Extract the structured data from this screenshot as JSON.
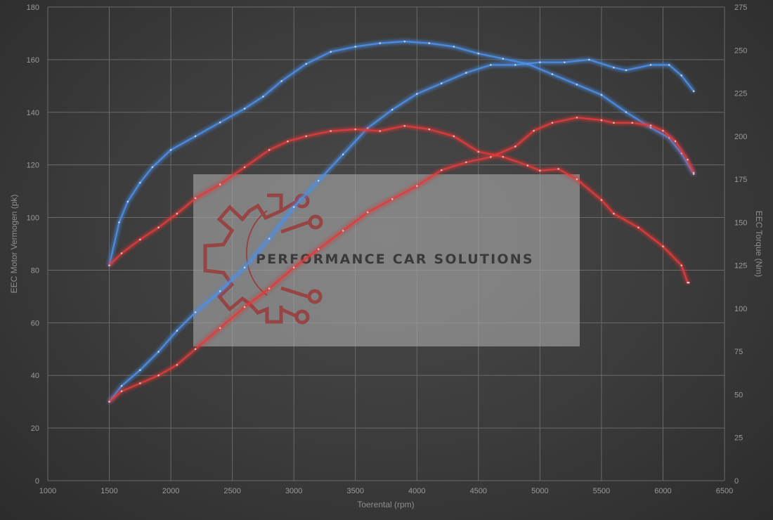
{
  "chart_data": {
    "type": "line",
    "xlabel": "Toerental (rpm)",
    "ylabel": "EEC Motor Vermogen (pk)",
    "y2label": "EEC Torque (Nm)",
    "xlim": [
      1000,
      6500
    ],
    "ylim": [
      0,
      180
    ],
    "y2lim": [
      0,
      275
    ],
    "xticks": [
      1000,
      1500,
      2000,
      2500,
      3000,
      3500,
      4000,
      4500,
      5000,
      5500,
      6000,
      6500
    ],
    "yticks": [
      0,
      20,
      40,
      60,
      80,
      100,
      120,
      140,
      160,
      180
    ],
    "y2ticks": [
      0,
      25,
      50,
      75,
      100,
      125,
      150,
      175,
      200,
      225,
      250,
      275
    ],
    "grid": true,
    "colors": {
      "tuned": "#4d8fe6",
      "stock": "#e03a3a"
    },
    "series": [
      {
        "kind": "torque",
        "variant": "tuned",
        "axis": "right",
        "color": "#4d8fe6",
        "x": [
          1500,
          1580,
          1650,
          1750,
          1850,
          2000,
          2200,
          2400,
          2600,
          2750,
          2900,
          3100,
          3300,
          3500,
          3700,
          3900,
          4100,
          4300,
          4500,
          4700,
          4900,
          5100,
          5300,
          5500,
          5700,
          5900,
          6050,
          6150,
          6250
        ],
        "y": [
          125,
          150,
          162,
          173,
          182,
          192,
          200,
          208,
          216,
          223,
          232,
          242,
          249,
          252,
          254,
          255,
          254,
          252,
          248,
          245,
          242,
          236,
          230,
          224,
          214,
          205,
          199,
          190,
          178
        ]
      },
      {
        "kind": "power",
        "variant": "tuned",
        "axis": "left",
        "color": "#4d8fe6",
        "x": [
          1500,
          1600,
          1750,
          1900,
          2050,
          2200,
          2400,
          2600,
          2800,
          3000,
          3200,
          3400,
          3600,
          3800,
          4000,
          4200,
          4400,
          4600,
          4800,
          5000,
          5200,
          5400,
          5600,
          5700,
          5900,
          6050,
          6150,
          6250
        ],
        "y": [
          30,
          36,
          42,
          49,
          57,
          64,
          72,
          81,
          92,
          104,
          114,
          124,
          134,
          141,
          147,
          151,
          155,
          158,
          158,
          159,
          159,
          160,
          157,
          156,
          158,
          158,
          154,
          148
        ]
      },
      {
        "kind": "torque",
        "variant": "stock",
        "axis": "right",
        "color": "#e03a3a",
        "x": [
          1500,
          1600,
          1750,
          1900,
          2050,
          2200,
          2400,
          2600,
          2800,
          2950,
          3100,
          3300,
          3500,
          3700,
          3900,
          4100,
          4300,
          4500,
          4700,
          4900,
          5000,
          5150,
          5300,
          5500,
          5600,
          5800,
          6000,
          6150,
          6200,
          6210
        ],
        "y": [
          125,
          132,
          140,
          147,
          155,
          164,
          172,
          182,
          192,
          197,
          200,
          203,
          204,
          203,
          206,
          204,
          200,
          191,
          188,
          183,
          180,
          181,
          175,
          163,
          155,
          147,
          136,
          125,
          115,
          115
        ]
      },
      {
        "kind": "power",
        "variant": "stock",
        "axis": "left",
        "color": "#e03a3a",
        "x": [
          1500,
          1600,
          1750,
          1900,
          2050,
          2200,
          2400,
          2600,
          2800,
          3000,
          3200,
          3400,
          3600,
          3800,
          4000,
          4200,
          4400,
          4600,
          4800,
          4950,
          5100,
          5300,
          5500,
          5600,
          5750,
          5900,
          6000,
          6100,
          6200,
          6250
        ],
        "y": [
          30,
          34,
          37,
          40,
          44,
          50,
          58,
          66,
          73,
          81,
          88,
          95,
          102,
          107,
          112,
          118,
          121,
          123,
          127,
          133,
          136,
          138,
          137,
          136,
          136,
          135,
          133,
          129,
          122,
          117
        ]
      }
    ]
  },
  "watermark": {
    "text": "PERFORMANCE CAR SOLUTIONS",
    "gear_color": "#9a3a3a",
    "panel_color": "#a8a8a8"
  }
}
